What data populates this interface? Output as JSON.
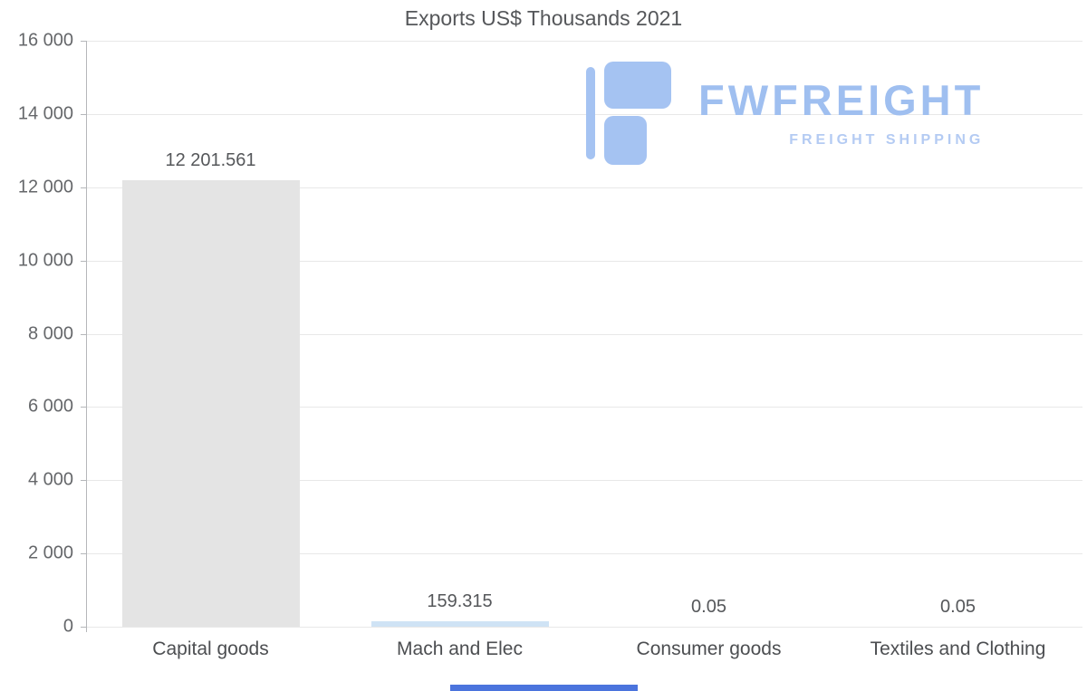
{
  "chart_data": {
    "type": "bar",
    "title": "Exports US$ Thousands 2021",
    "categories": [
      "Capital goods",
      "Mach and Elec",
      "Consumer goods",
      "Textiles and Clothing"
    ],
    "values": [
      12201.561,
      159.315,
      0.05,
      0.05
    ],
    "value_labels": [
      "12 201.561",
      "159.315",
      "0.05",
      "0.05"
    ],
    "bar_colors": [
      "#e4e4e4",
      "#cfe3f5",
      "#d9ecf8",
      "#d9f0e6"
    ],
    "xlabel": "",
    "ylabel": "",
    "ylim": [
      0,
      16000
    ],
    "ytick_values": [
      0,
      2000,
      4000,
      6000,
      8000,
      10000,
      12000,
      14000,
      16000
    ],
    "ytick_labels": [
      "0",
      "2 000",
      "4 000",
      "6 000",
      "8 000",
      "10 000",
      "12 000",
      "14 000",
      "16 000"
    ],
    "grid": true,
    "legend": false
  },
  "watermark": {
    "brand": "FWFREIGHT",
    "tagline": "FREIGHT SHIPPING",
    "icon_color": "#a5c3f2",
    "brand_color": "#9fbff0",
    "tagline_color": "#b4cbf3"
  },
  "footer": {
    "strip_color": "#4b74dd"
  }
}
